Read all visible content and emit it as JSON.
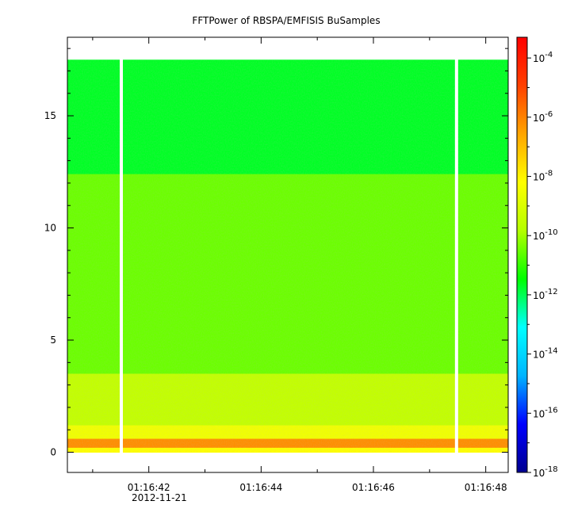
{
  "chart_data": {
    "type": "heatmap",
    "title": "FFTPower of RBSPA/EMFISIS  BuSamples",
    "xlabel": "",
    "ylabel": "",
    "x_date_label": "2012-11-21",
    "x_ticks": [
      "01:16:42",
      "01:16:44",
      "01:16:46",
      "01:16:48"
    ],
    "x_tick_values_s": [
      2,
      4,
      6,
      8
    ],
    "x_range_s": [
      0.55,
      8.4
    ],
    "y_ticks": [
      "0",
      "5",
      "10",
      "15"
    ],
    "y_tick_values": [
      0,
      5,
      10,
      15
    ],
    "ylim": [
      -0.9,
      18.5
    ],
    "data_top": 17.5,
    "data_bottom": 0,
    "gaps_s": [
      1.51,
      7.48
    ],
    "colorbar": {
      "scale": "log",
      "range_exp": [
        -18,
        -3.3
      ],
      "tick_exponents": [
        -4,
        -6,
        -8,
        -10,
        -12,
        -14,
        -16,
        -18
      ],
      "tick_labels": [
        "10^-4",
        "10^-6",
        "10^-8",
        "10^-10",
        "10^-12",
        "10^-14",
        "10^-16",
        "10^-18"
      ],
      "colormap": [
        "#00008f",
        "#0000ff",
        "#00b4ff",
        "#00ffff",
        "#00ff00",
        "#b4ff00",
        "#ffff00",
        "#ffa500",
        "#ff4000",
        "#ff0000"
      ]
    },
    "bands": [
      {
        "y0": 12.4,
        "y1": 17.5,
        "log10_power": -11.7
      },
      {
        "y0": 3.5,
        "y1": 12.4,
        "log10_power": -10.5
      },
      {
        "y0": 1.2,
        "y1": 3.5,
        "log10_power": -9.5
      },
      {
        "y0": 0.6,
        "y1": 1.2,
        "log10_power": -8.5
      },
      {
        "y0": 0.2,
        "y1": 0.6,
        "log10_power": -6.2
      },
      {
        "y0": 0.0,
        "y1": 0.2,
        "log10_power": -8.2
      }
    ]
  }
}
